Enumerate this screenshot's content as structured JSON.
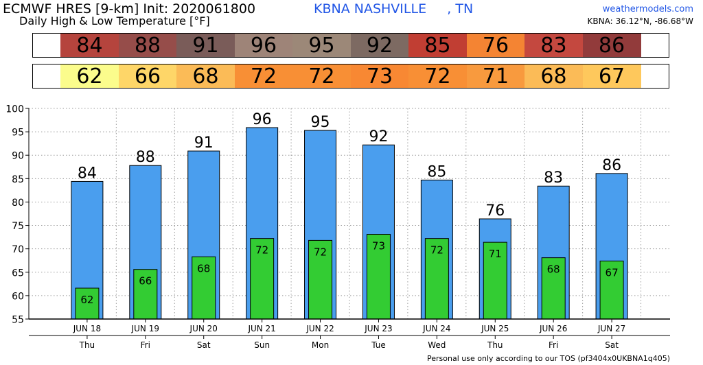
{
  "header": {
    "model_line": "ECMWF HRES [9-km] Init: 2020061800",
    "subtitle": "Daily High & Low Temperature [°F]",
    "station": "KBNA NASHVILLE     , TN",
    "site": "weathermodels.com",
    "coords": "KBNA: 36.12°N, -86.68°W"
  },
  "footer": "Personal use only according to our TOS (pf3404x0UKBNA1q405)",
  "colors": {
    "high_bar": "#4a9eee",
    "low_bar": "#33cc33",
    "high_cells": [
      "#b5443d",
      "#964d4a",
      "#7a5c59",
      "#9e8478",
      "#9c8878",
      "#7d6a62",
      "#c13e33",
      "#f48433",
      "#c4483f",
      "#923b3b"
    ],
    "low_cells": [
      "#fbfc8c",
      "#fed668",
      "#fbbb57",
      "#f88f35",
      "#f88f35",
      "#f88833",
      "#f88f35",
      "#f89a3e",
      "#fbbb57",
      "#fec85c"
    ]
  },
  "chart_data": {
    "type": "bar",
    "categories": [
      "JUN 18",
      "JUN 19",
      "JUN 20",
      "JUN 21",
      "JUN 22",
      "JUN 23",
      "JUN 24",
      "JUN 25",
      "JUN 26",
      "JUN 27"
    ],
    "weekdays": [
      "Thu",
      "Fri",
      "Sat",
      "Sun",
      "Mon",
      "Tue",
      "Wed",
      "Thu",
      "Fri",
      "Sat"
    ],
    "series": [
      {
        "name": "High",
        "values": [
          84.4,
          87.8,
          90.9,
          95.9,
          95.3,
          92.2,
          84.7,
          76.4,
          83.4,
          86.1
        ],
        "labels": [
          "84",
          "88",
          "91",
          "96",
          "95",
          "92",
          "85",
          "76",
          "83",
          "86"
        ]
      },
      {
        "name": "Low",
        "values": [
          61.6,
          65.6,
          68.3,
          72.2,
          71.8,
          73.1,
          72.2,
          71.4,
          68.1,
          67.4
        ],
        "labels": [
          "62",
          "66",
          "68",
          "72",
          "72",
          "73",
          "72",
          "71",
          "68",
          "67"
        ]
      }
    ],
    "ylim": [
      55,
      100
    ],
    "yticks": [
      55,
      60,
      65,
      70,
      75,
      80,
      85,
      90,
      95,
      100
    ],
    "grid": true
  }
}
